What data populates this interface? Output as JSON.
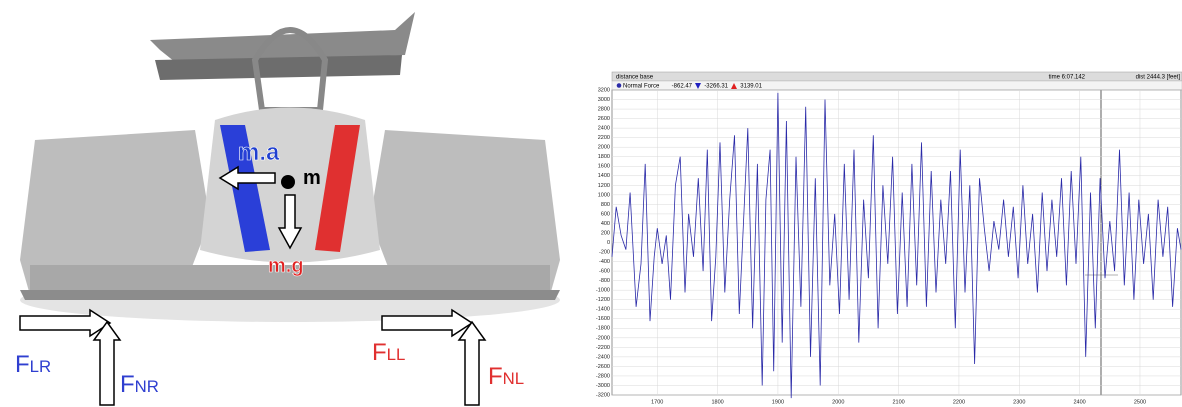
{
  "diagram": {
    "labels": [
      {
        "text": "m.a",
        "color": "#1f3fcf"
      },
      {
        "text": "m",
        "color": "#000000"
      },
      {
        "text": "m.g",
        "color": "#e02020"
      },
      {
        "text": "F",
        "sub": "LR",
        "color": "#2f3fd0"
      },
      {
        "text": "F",
        "sub": "NR",
        "color": "#2f3fd0"
      },
      {
        "text": "F",
        "sub": "LL",
        "color": "#e03030"
      },
      {
        "text": "F",
        "sub": "NL",
        "color": "#e03030"
      }
    ]
  },
  "chart_data": {
    "type": "line",
    "header": "distance base",
    "time": "time 6:07.142",
    "dist": "dist 2444.3 [feet]",
    "series": [
      {
        "name": "Normal Force",
        "color": "#2a2aa8",
        "readouts": [
          "-862.47",
          "-3266.31",
          "3139.01"
        ],
        "x": [
          1625,
          1632,
          1640,
          1648,
          1655,
          1665,
          1673,
          1680,
          1688,
          1695,
          1700,
          1708,
          1715,
          1722,
          1730,
          1738,
          1746,
          1752,
          1760,
          1768,
          1776,
          1783,
          1790,
          1797,
          1804,
          1812,
          1820,
          1828,
          1836,
          1842,
          1850,
          1858,
          1866,
          1874,
          1880,
          1887,
          1893,
          1900,
          1907,
          1914,
          1922,
          1930,
          1938,
          1946,
          1954,
          1962,
          1970,
          1978,
          1986,
          1994,
          2002,
          2010,
          2018,
          2026,
          2034,
          2042,
          2050,
          2058,
          2066,
          2074,
          2082,
          2090,
          2098,
          2106,
          2114,
          2122,
          2130,
          2138,
          2146,
          2154,
          2162,
          2170,
          2178,
          2186,
          2194,
          2202,
          2210,
          2218,
          2226,
          2234,
          2242,
          2250,
          2258,
          2266,
          2274,
          2282,
          2290,
          2298,
          2306,
          2314,
          2322,
          2330,
          2338,
          2346,
          2354,
          2362,
          2370,
          2378,
          2386,
          2394,
          2402,
          2410,
          2418,
          2426,
          2434,
          2442,
          2450,
          2458,
          2466,
          2474,
          2482,
          2490,
          2498,
          2506,
          2514,
          2522,
          2530,
          2538,
          2546,
          2554,
          2562,
          2568
        ],
        "values": [
          -300,
          750,
          150,
          -150,
          1050,
          -1350,
          -450,
          1650,
          -1650,
          -300,
          300,
          -450,
          150,
          -1200,
          1200,
          1800,
          -1050,
          600,
          -300,
          1350,
          -600,
          1950,
          -1650,
          -300,
          2100,
          -1050,
          900,
          2250,
          -1500,
          150,
          2400,
          -1800,
          1650,
          -3000,
          900,
          1950,
          -2700,
          3139,
          -2100,
          2550,
          -3266,
          1800,
          -1350,
          2850,
          -2400,
          1350,
          -3000,
          3000,
          -900,
          600,
          -1500,
          1650,
          -1200,
          1950,
          -2100,
          900,
          -750,
          2250,
          -1800,
          1200,
          -450,
          1800,
          -1500,
          1050,
          -1350,
          1650,
          -900,
          2100,
          -1350,
          1500,
          -1050,
          900,
          -450,
          1500,
          -1800,
          1950,
          -1050,
          1200,
          -2550,
          1350,
          300,
          -600,
          450,
          -150,
          900,
          -300,
          750,
          -750,
          1200,
          -450,
          600,
          -1050,
          1050,
          -600,
          900,
          -300,
          1350,
          -900,
          1500,
          -450,
          1800,
          -2400,
          1050,
          -1800,
          1350,
          -750,
          450,
          -600,
          1950,
          -900,
          1050,
          -1200,
          900,
          -450,
          600,
          -1200,
          900,
          -300,
          750,
          -1350,
          300,
          -150
        ]
      }
    ],
    "xlim": [
      1625,
      2568
    ],
    "xticks": [
      1700,
      1800,
      1900,
      2000,
      2100,
      2200,
      2300,
      2400,
      2500
    ],
    "ylim": [
      -3200,
      3200
    ],
    "yticks": [
      3200,
      3000,
      2800,
      2600,
      2400,
      2200,
      2000,
      1800,
      1600,
      1400,
      1200,
      1000,
      800,
      600,
      400,
      200,
      0,
      -200,
      -400,
      -600,
      -800,
      -1000,
      -1200,
      -1400,
      -1600,
      -1800,
      -2000,
      -2200,
      -2400,
      -2600,
      -2800,
      -3000,
      -3200
    ],
    "grid": true
  }
}
